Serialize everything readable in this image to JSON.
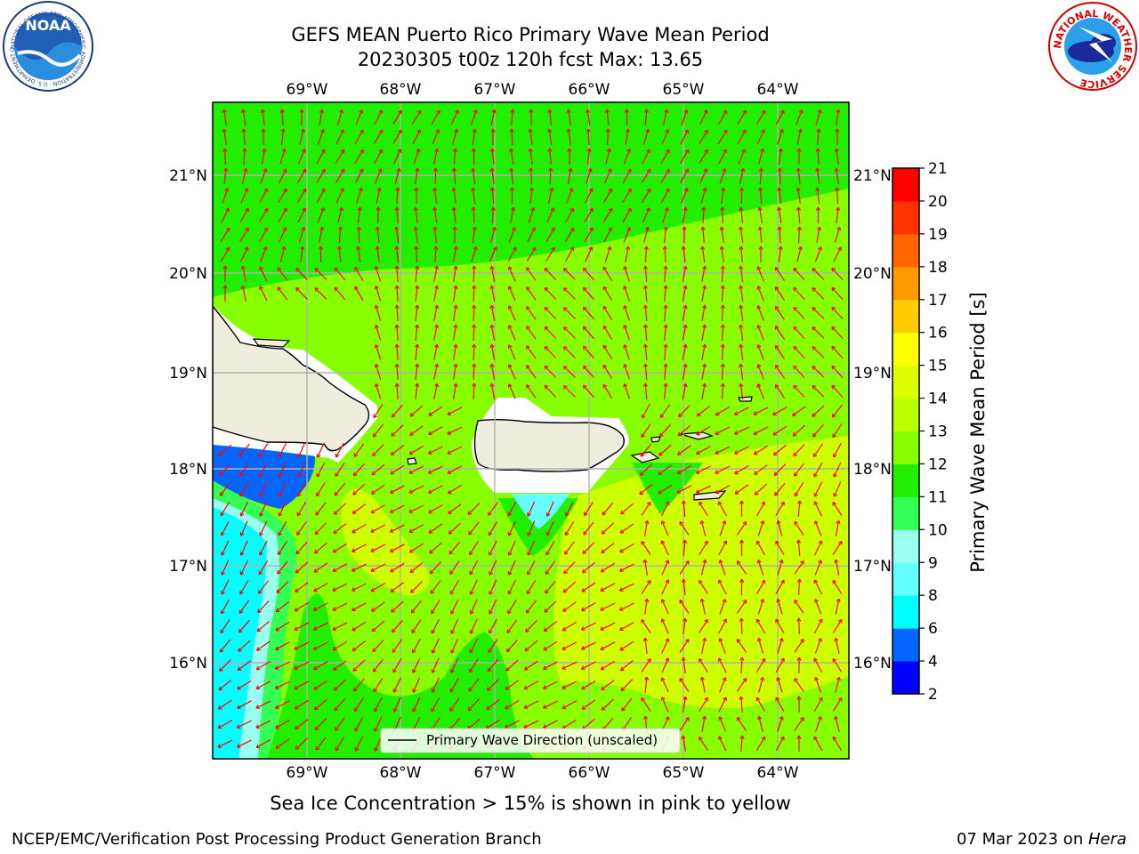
{
  "title": {
    "line1": "GEFS MEAN Puerto Rico Primary Wave Mean Period",
    "line2": "20230305 t00z 120h fcst   Max: 13.65"
  },
  "map": {
    "lon_labels": [
      "69°W",
      "68°W",
      "67°W",
      "66°W",
      "65°W",
      "64°W"
    ],
    "lat_labels": [
      "21°N",
      "20°N",
      "19°N",
      "18°N",
      "17°N",
      "16°N"
    ],
    "legend_label": "Primary Wave Direction (unscaled)",
    "arrow_color": "#ff0000"
  },
  "colorbar": {
    "label": "Primary Wave Mean Period [s]",
    "ticks": [
      "2",
      "4",
      "6",
      "8",
      "9",
      "10",
      "11",
      "12",
      "13",
      "14",
      "15",
      "16",
      "17",
      "18",
      "19",
      "20",
      "21"
    ],
    "colors": [
      "#0000ff",
      "#0066ff",
      "#00ffff",
      "#66ffff",
      "#99ffee",
      "#33ff55",
      "#22ee00",
      "#88ff00",
      "#bbff00",
      "#ddff00",
      "#ffff00",
      "#ffcc00",
      "#ff9900",
      "#ff6600",
      "#ff3300",
      "#ff0000"
    ]
  },
  "logos": {
    "noaa": {
      "mark": "NOAA",
      "ring_text": "NATIONAL OCEANIC AND ATMOSPHERIC ADMINISTRATION · U.S. DEPARTMENT OF COMMERCE"
    },
    "nws": {
      "ring_text": "NATIONAL WEATHER SERVICE"
    }
  },
  "footer": {
    "ice_note": "Sea Ice Concentration > 15% is shown in pink to yellow",
    "left": "NCEP/EMC/Verification Post Processing Product Generation Branch",
    "right_prefix": "07 Mar 2023 on ",
    "right_host": "Hera"
  }
}
